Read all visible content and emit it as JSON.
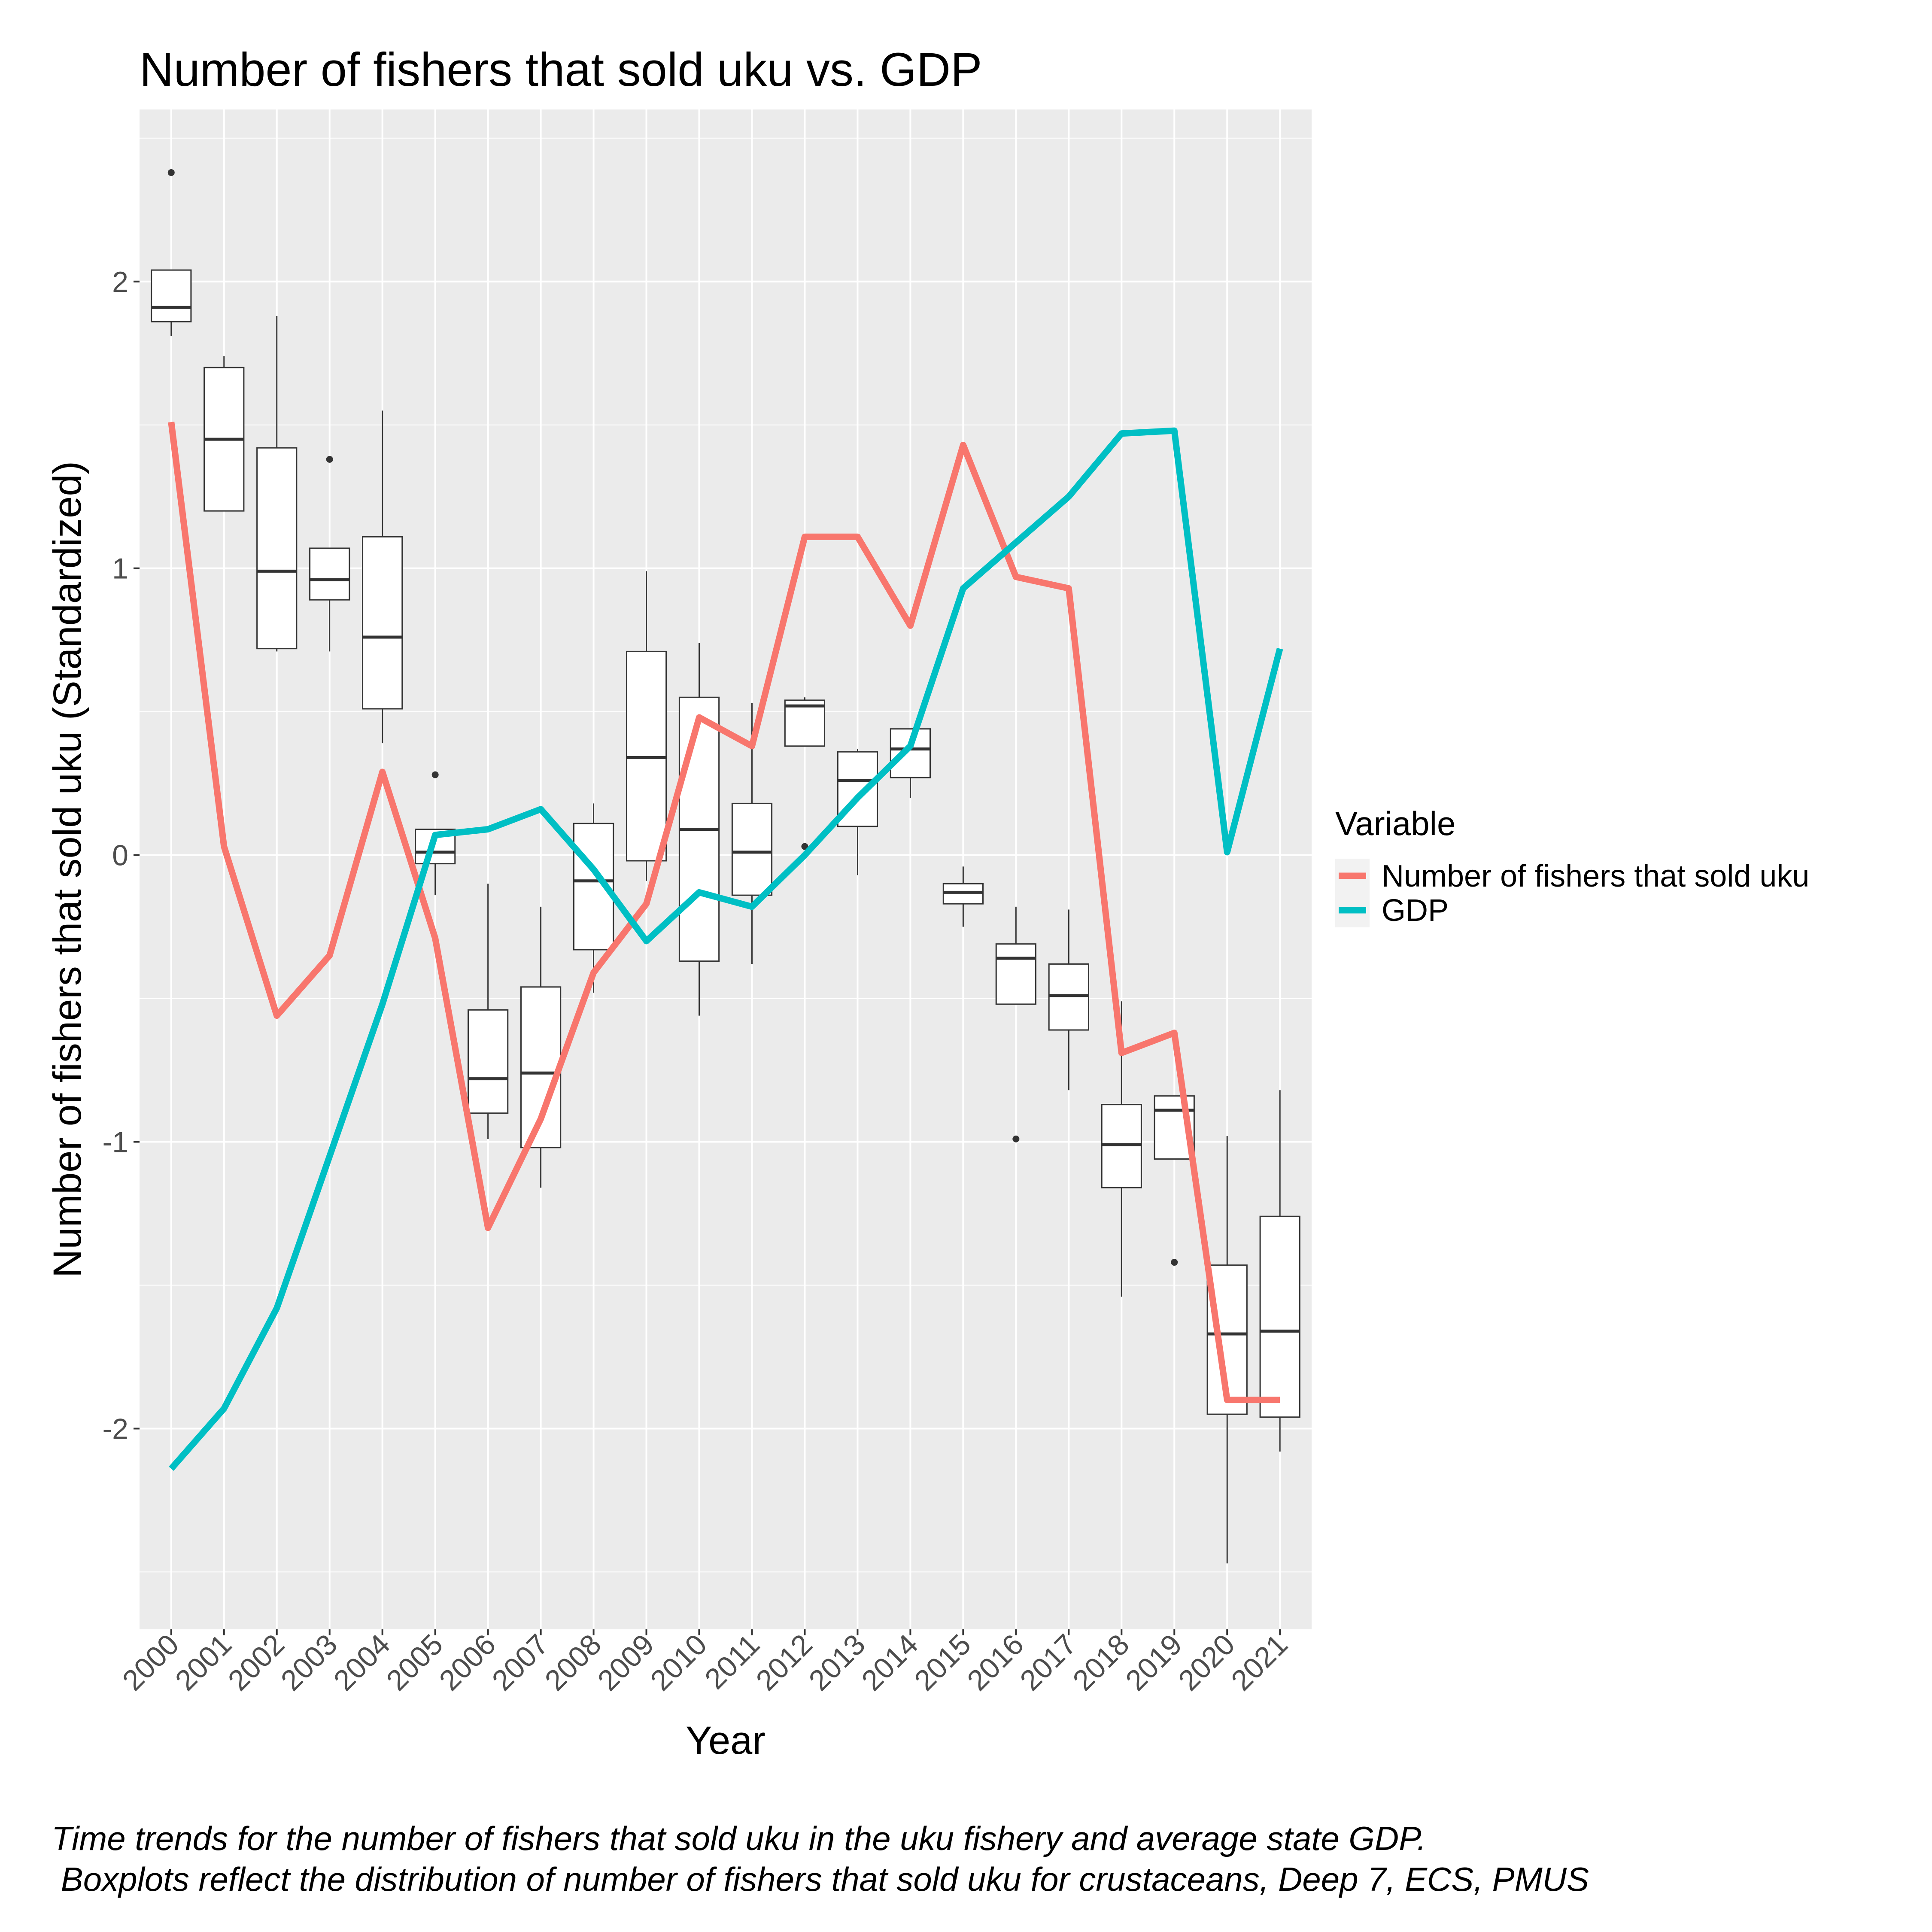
{
  "chart_data": {
    "type": "line",
    "title": "Number of fishers that sold uku vs. GDP",
    "xlabel": "Year",
    "ylabel": "Number of fishers that sold uku (Standardized)",
    "categories": [
      "2000",
      "2001",
      "2002",
      "2003",
      "2004",
      "2005",
      "2006",
      "2007",
      "2008",
      "2009",
      "2010",
      "2011",
      "2012",
      "2013",
      "2014",
      "2015",
      "2016",
      "2017",
      "2018",
      "2019",
      "2020",
      "2021"
    ],
    "yticks": [
      -2,
      -1,
      0,
      1,
      2
    ],
    "ylim": [
      -2.7,
      2.6
    ],
    "grid": true,
    "legend": {
      "title": "Variable",
      "position": "right"
    },
    "series": [
      {
        "name": "Number of fishers that sold uku",
        "color": "#F8766D",
        "values": [
          1.51,
          0.03,
          -0.56,
          -0.35,
          0.29,
          -0.29,
          -1.3,
          -0.92,
          -0.41,
          -0.17,
          0.48,
          0.38,
          1.11,
          1.11,
          0.8,
          1.43,
          0.97,
          0.93,
          -0.69,
          -0.62,
          -1.9,
          -1.9
        ]
      },
      {
        "name": "GDP",
        "color": "#00BFC4",
        "values": [
          -2.14,
          -1.93,
          -1.58,
          -1.05,
          -0.52,
          0.07,
          0.09,
          0.16,
          -0.05,
          -0.3,
          -0.13,
          -0.18,
          0.0,
          0.2,
          0.38,
          0.93,
          1.09,
          1.25,
          1.47,
          1.48,
          0.01,
          0.72
        ]
      }
    ],
    "boxplots": [
      {
        "year": "2000",
        "q1": 1.86,
        "median": 1.91,
        "q3": 2.04,
        "lower": 1.81,
        "upper": 2.04,
        "outliers": [
          2.38
        ]
      },
      {
        "year": "2001",
        "q1": 1.2,
        "median": 1.45,
        "q3": 1.7,
        "lower": 1.2,
        "upper": 1.74,
        "outliers": []
      },
      {
        "year": "2002",
        "q1": 0.72,
        "median": 0.99,
        "q3": 1.42,
        "lower": 0.71,
        "upper": 1.88,
        "outliers": []
      },
      {
        "year": "2003",
        "q1": 0.89,
        "median": 0.96,
        "q3": 1.07,
        "lower": 0.71,
        "upper": 1.07,
        "outliers": [
          1.38
        ]
      },
      {
        "year": "2004",
        "q1": 0.51,
        "median": 0.76,
        "q3": 1.11,
        "lower": 0.39,
        "upper": 1.55,
        "outliers": []
      },
      {
        "year": "2005",
        "q1": -0.03,
        "median": 0.01,
        "q3": 0.09,
        "lower": -0.14,
        "upper": 0.09,
        "outliers": [
          0.28
        ]
      },
      {
        "year": "2006",
        "q1": -0.9,
        "median": -0.78,
        "q3": -0.54,
        "lower": -0.99,
        "upper": -0.1,
        "outliers": []
      },
      {
        "year": "2007",
        "q1": -1.02,
        "median": -0.76,
        "q3": -0.46,
        "lower": -1.16,
        "upper": -0.18,
        "outliers": []
      },
      {
        "year": "2008",
        "q1": -0.33,
        "median": -0.09,
        "q3": 0.11,
        "lower": -0.48,
        "upper": 0.18,
        "outliers": []
      },
      {
        "year": "2009",
        "q1": -0.02,
        "median": 0.34,
        "q3": 0.71,
        "lower": -0.09,
        "upper": 0.99,
        "outliers": []
      },
      {
        "year": "2010",
        "q1": -0.37,
        "median": 0.09,
        "q3": 0.55,
        "lower": -0.56,
        "upper": 0.74,
        "outliers": []
      },
      {
        "year": "2011",
        "q1": -0.14,
        "median": 0.01,
        "q3": 0.18,
        "lower": -0.38,
        "upper": 0.53,
        "outliers": []
      },
      {
        "year": "2012",
        "q1": 0.38,
        "median": 0.52,
        "q3": 0.54,
        "lower": 0.38,
        "upper": 0.55,
        "outliers": [
          0.03
        ]
      },
      {
        "year": "2013",
        "q1": 0.1,
        "median": 0.26,
        "q3": 0.36,
        "lower": -0.07,
        "upper": 0.37,
        "outliers": []
      },
      {
        "year": "2014",
        "q1": 0.27,
        "median": 0.37,
        "q3": 0.44,
        "lower": 0.2,
        "upper": 0.44,
        "outliers": []
      },
      {
        "year": "2015",
        "q1": -0.17,
        "median": -0.13,
        "q3": -0.1,
        "lower": -0.25,
        "upper": -0.04,
        "outliers": []
      },
      {
        "year": "2016",
        "q1": -0.52,
        "median": -0.36,
        "q3": -0.31,
        "lower": -0.52,
        "upper": -0.18,
        "outliers": [
          -0.99
        ]
      },
      {
        "year": "2017",
        "q1": -0.61,
        "median": -0.49,
        "q3": -0.38,
        "lower": -0.82,
        "upper": -0.19,
        "outliers": []
      },
      {
        "year": "2018",
        "q1": -1.16,
        "median": -1.01,
        "q3": -0.87,
        "lower": -1.54,
        "upper": -0.51,
        "outliers": []
      },
      {
        "year": "2019",
        "q1": -1.06,
        "median": -0.89,
        "q3": -0.84,
        "lower": -1.06,
        "upper": -0.84,
        "outliers": [
          -1.42
        ]
      },
      {
        "year": "2020",
        "q1": -1.95,
        "median": -1.67,
        "q3": -1.43,
        "lower": -2.47,
        "upper": -0.98,
        "outliers": []
      },
      {
        "year": "2021",
        "q1": -1.96,
        "median": -1.66,
        "q3": -1.26,
        "lower": -2.08,
        "upper": -0.82,
        "outliers": []
      }
    ],
    "caption": [
      "Time trends for the number of fishers that sold uku in the uku fishery and average state GDP.",
      " Boxplots reflect the distribution of number of fishers that sold uku for crustaceans, Deep 7, ECS, PMUS"
    ]
  }
}
